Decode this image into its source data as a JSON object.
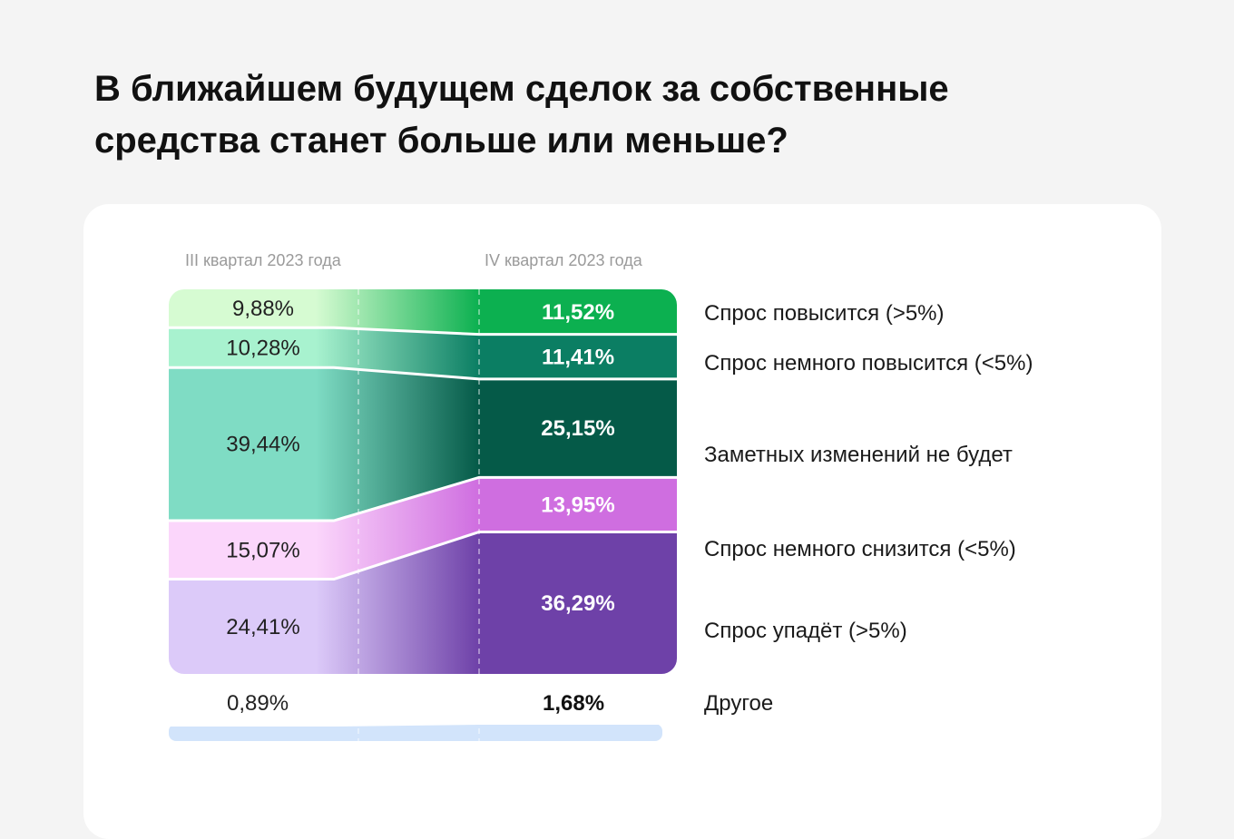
{
  "title": "В ближайшем будущем сделок за собственные средства станет больше или меньше?",
  "chart_data": {
    "type": "sankey-stacked",
    "periods": [
      "III квартал 2023 года",
      "IV квартал 2023 года"
    ],
    "categories": [
      {
        "name": "Спрос повысится (>5%)",
        "q3": 9.88,
        "q4": 11.52,
        "q3_label": "9,88%",
        "q4_label": "11,52%",
        "color_q3": "#d6fbd2",
        "color_q4": "#0cb050"
      },
      {
        "name": "Спрос немного повысится (<5%)",
        "q3": 10.28,
        "q4": 11.41,
        "q3_label": "10,28%",
        "q4_label": "11,41%",
        "color_q3": "#a8f2cf",
        "color_q4": "#0b7e63"
      },
      {
        "name": "Заметных изменений не будет",
        "q3": 39.44,
        "q4": 25.15,
        "q3_label": "39,44%",
        "q4_label": "25,15%",
        "color_q3": "#7fdcc4",
        "color_q4": "#055a48"
      },
      {
        "name": "Спрос немного снизится (<5%)",
        "q3": 15.07,
        "q4": 13.95,
        "q3_label": "15,07%",
        "q4_label": "13,95%",
        "color_q3": "#fbd6fb",
        "color_q4": "#cf6ee0"
      },
      {
        "name": "Спрос упадёт (>5%)",
        "q3": 24.41,
        "q4": 36.29,
        "q3_label": "24,41%",
        "q4_label": "36,29%",
        "color_q3": "#dccaf9",
        "color_q4": "#6e41a8"
      }
    ],
    "other": {
      "name": "Другое",
      "q3": 0.89,
      "q4": 1.68,
      "q3_label": "0,89%",
      "q4_label": "1,68%",
      "color": "#d2e4fb"
    }
  }
}
